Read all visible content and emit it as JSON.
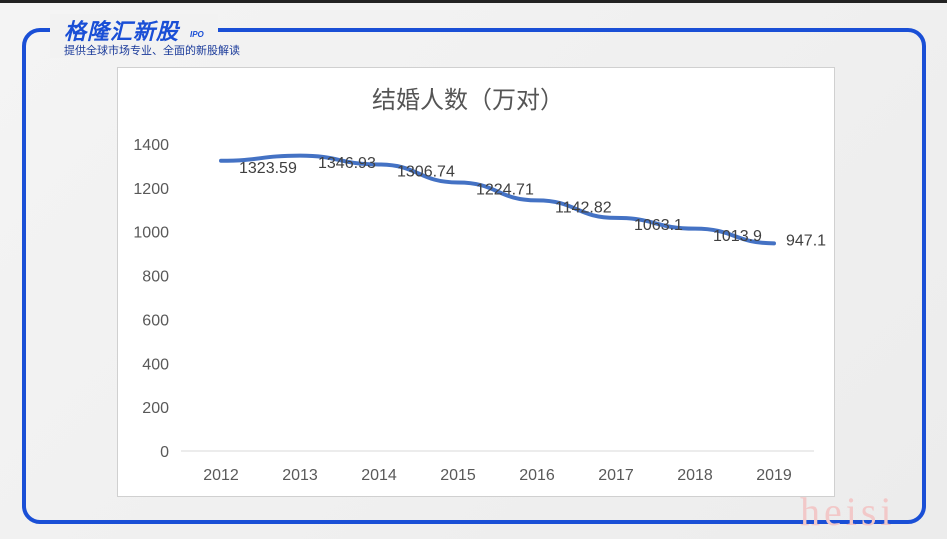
{
  "brand": {
    "name": "格隆汇新股",
    "badge": "IPO",
    "tagline": "提供全球市场专业、全面的新股解读",
    "accent": "#1a4fd6"
  },
  "watermark": "heisi",
  "chart_data": {
    "type": "line",
    "title": "结婚人数（万对）",
    "categories": [
      "2012",
      "2013",
      "2014",
      "2015",
      "2016",
      "2017",
      "2018",
      "2019"
    ],
    "series": [
      {
        "values": [
          1323.59,
          1346.93,
          1306.74,
          1224.71,
          1142.82,
          1063.1,
          1013.9,
          947.1
        ],
        "labels": [
          "1323.59",
          "1346.93",
          "1306.74",
          "1224.71",
          "1142.82",
          "1063.1",
          "1013.9",
          "947.1"
        ],
        "color": "#4472c4"
      }
    ],
    "ylim": [
      0,
      1400
    ],
    "yticks": [
      "0",
      "200",
      "400",
      "600",
      "800",
      "1000",
      "1200",
      "1400"
    ],
    "grid": false,
    "legend": "none"
  }
}
